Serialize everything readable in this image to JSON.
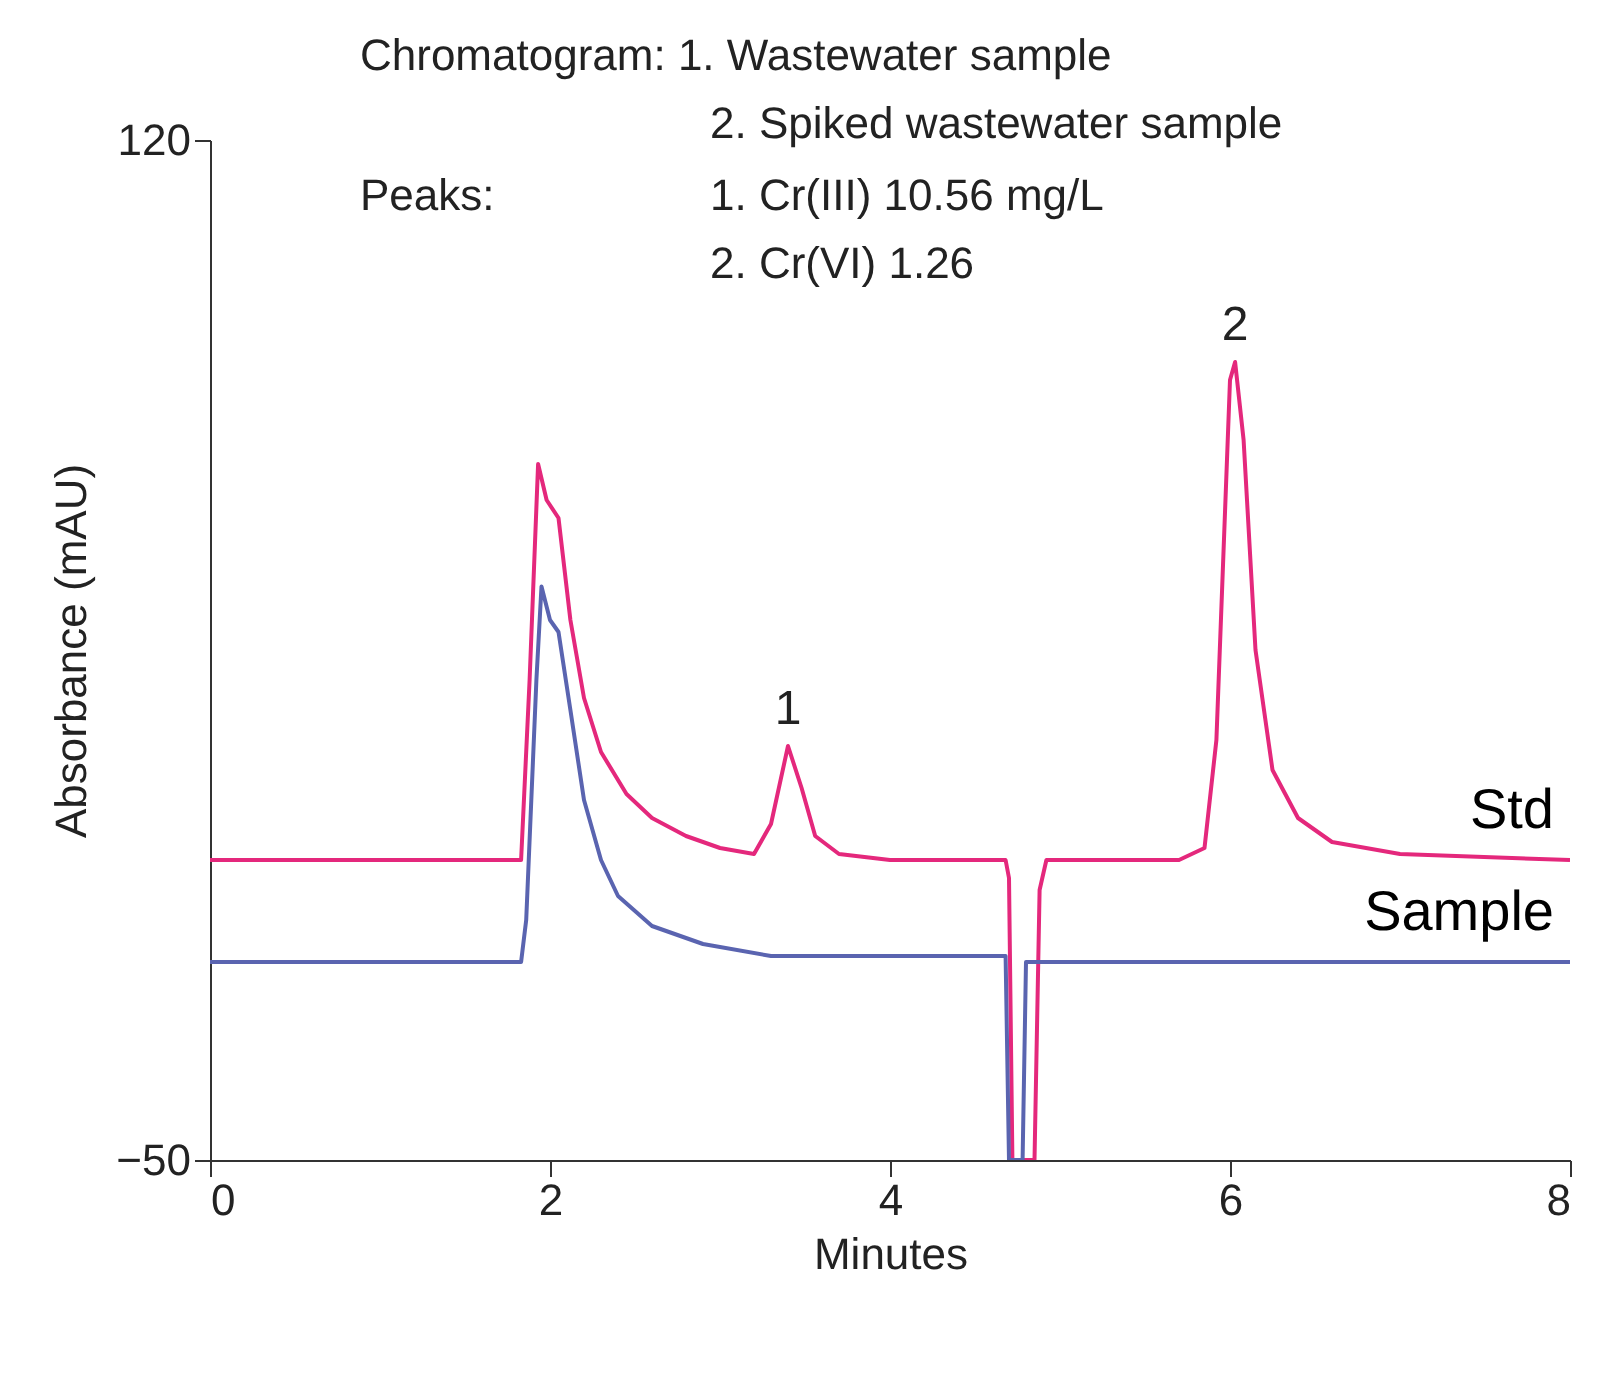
{
  "chart_data": {
    "type": "line",
    "xlabel": "Minutes",
    "ylabel": "Absorbance (mAU)",
    "xlim": [
      0,
      8
    ],
    "xticks": [
      0,
      2,
      4,
      6,
      8
    ],
    "ylim": [
      -50,
      120
    ],
    "yticks": [
      -50,
      120
    ],
    "grid": false,
    "marker": "none",
    "line_style": "solid",
    "annotations": [
      "Chromatogram: 1. Wastewater sample",
      "2. Spiked wastewater sample",
      "Peaks:",
      "1. Cr(III)   10.56 mg/L",
      "2. Cr(VI)    1.26",
      {
        "text": "1",
        "x": 3.4,
        "y": 19
      },
      {
        "text": "2",
        "x": 6.03,
        "y": 83
      }
    ],
    "series": [
      {
        "name": "Std",
        "color": "#e4287c",
        "x": [
          0,
          1.83,
          1.88,
          1.93,
          1.98,
          2.05,
          2.12,
          2.2,
          2.3,
          2.45,
          2.6,
          2.8,
          3.0,
          3.2,
          3.3,
          3.4,
          3.48,
          3.56,
          3.7,
          4.0,
          4.68,
          4.7,
          4.72,
          4.85,
          4.88,
          4.92,
          5.7,
          5.85,
          5.92,
          6.0,
          6.03,
          6.08,
          6.15,
          6.25,
          6.4,
          6.6,
          7.0,
          8.0
        ],
        "values": [
          0,
          0,
          30,
          66,
          60,
          57,
          40,
          27,
          18,
          11,
          7,
          4,
          2,
          1,
          6,
          19,
          12,
          4,
          1,
          0,
          0,
          -3,
          -50,
          -50,
          -5,
          0,
          0,
          2,
          20,
          80,
          83,
          70,
          35,
          15,
          7,
          3,
          1,
          0
        ]
      },
      {
        "name": "Sample",
        "color": "#5a64b0",
        "x": [
          0,
          1.83,
          1.86,
          1.92,
          1.95,
          2.0,
          2.05,
          2.12,
          2.2,
          2.3,
          2.4,
          2.6,
          2.9,
          3.3,
          4.68,
          4.7,
          4.78,
          4.8,
          8.0
        ],
        "values": [
          -17,
          -17,
          -10,
          30,
          45.6,
          40,
          38,
          25,
          10,
          0,
          -6,
          -11,
          -14,
          -16,
          -16,
          -50,
          -50,
          -17,
          -17
        ]
      }
    ]
  }
}
